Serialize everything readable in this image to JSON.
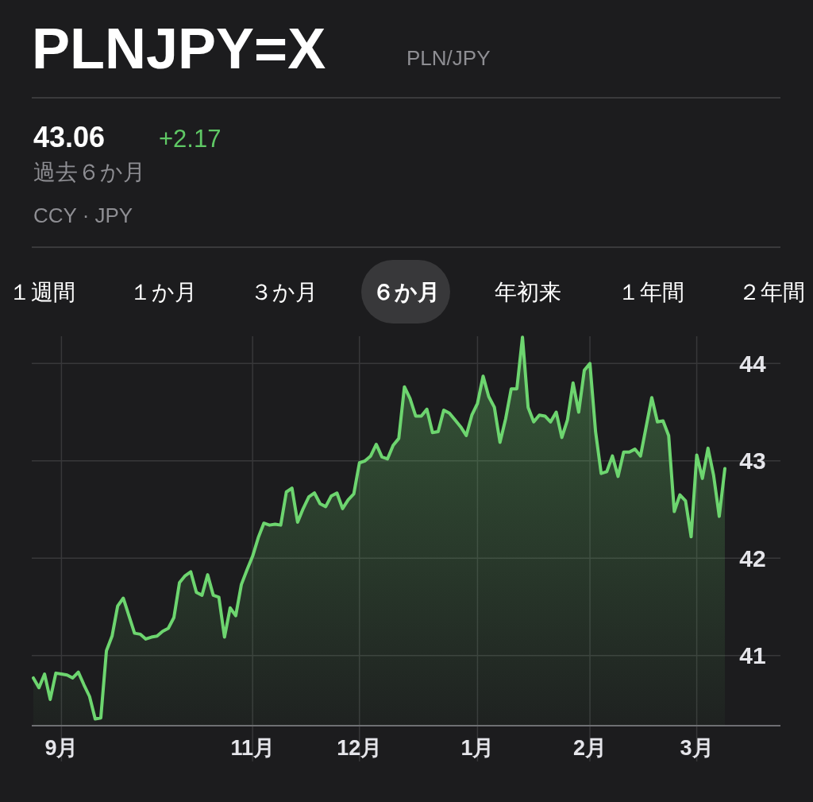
{
  "chart_data": {
    "type": "area",
    "title": "PLNJPY=X",
    "subtitle": "PLN/JPY",
    "annotations": [
      "43.06",
      "+2.17",
      "過去６か月",
      "CCY · JPY",
      "１週間",
      "１か月",
      "３か月",
      "６か月",
      "年初来",
      "１年間",
      "２年間"
    ],
    "categories": [
      null,
      null,
      null,
      null,
      null,
      "9月",
      null,
      null,
      null,
      null,
      null,
      null,
      null,
      null,
      null,
      null,
      null,
      null,
      null,
      null,
      null,
      null,
      null,
      null,
      null,
      null,
      null,
      null,
      null,
      null,
      null,
      null,
      null,
      null,
      null,
      null,
      null,
      null,
      null,
      "11月",
      null,
      null,
      null,
      null,
      null,
      null,
      null,
      null,
      null,
      null,
      null,
      null,
      null,
      null,
      null,
      null,
      null,
      null,
      "12月",
      null,
      null,
      null,
      null,
      null,
      null,
      null,
      null,
      null,
      null,
      null,
      null,
      null,
      null,
      null,
      null,
      null,
      null,
      null,
      null,
      "1月",
      null,
      null,
      null,
      null,
      null,
      null,
      null,
      null,
      null,
      null,
      null,
      null,
      null,
      null,
      null,
      null,
      null,
      null,
      null,
      "2月",
      null,
      null,
      null,
      null,
      null,
      null,
      null,
      null,
      null,
      null,
      null,
      null,
      null,
      null,
      null,
      null,
      null,
      null,
      "3月",
      null,
      null,
      null,
      null,
      null
    ],
    "color": "#6dd56f",
    "values": [
      40.77,
      40.67,
      40.81,
      40.55,
      40.82,
      40.81,
      40.8,
      40.77,
      40.83,
      40.7,
      40.58,
      40.35,
      40.36,
      41.05,
      41.2,
      41.51,
      41.59,
      41.41,
      41.23,
      41.22,
      41.17,
      41.19,
      41.2,
      41.25,
      41.28,
      41.39,
      41.75,
      41.82,
      41.86,
      41.65,
      41.62,
      41.83,
      41.62,
      41.6,
      41.19,
      41.49,
      41.41,
      41.73,
      41.88,
      42.02,
      42.21,
      42.36,
      42.34,
      42.35,
      42.34,
      42.68,
      42.72,
      42.37,
      42.51,
      42.63,
      42.67,
      42.56,
      42.53,
      42.64,
      42.67,
      42.51,
      42.6,
      42.66,
      42.98,
      43.0,
      43.05,
      43.17,
      43.04,
      43.02,
      43.16,
      43.23,
      43.76,
      43.64,
      43.46,
      43.46,
      43.53,
      43.29,
      43.3,
      43.52,
      43.49,
      43.42,
      43.35,
      43.26,
      43.47,
      43.59,
      43.87,
      43.66,
      43.55,
      43.19,
      43.43,
      43.74,
      43.74,
      44.27,
      43.55,
      43.4,
      43.47,
      43.46,
      43.4,
      43.5,
      43.24,
      43.42,
      43.8,
      43.5,
      43.93,
      44.0,
      43.3,
      42.87,
      42.89,
      43.05,
      42.84,
      43.09,
      43.09,
      43.12,
      43.05,
      43.35,
      43.65,
      43.4,
      43.41,
      43.26,
      42.48,
      42.65,
      42.59,
      42.22,
      43.06,
      42.82,
      43.13,
      42.85,
      42.43,
      42.92
    ],
    "ylim": [
      40.28,
      44.28
    ],
    "yticks": [
      41,
      42,
      43,
      44
    ],
    "grid": true
  }
}
